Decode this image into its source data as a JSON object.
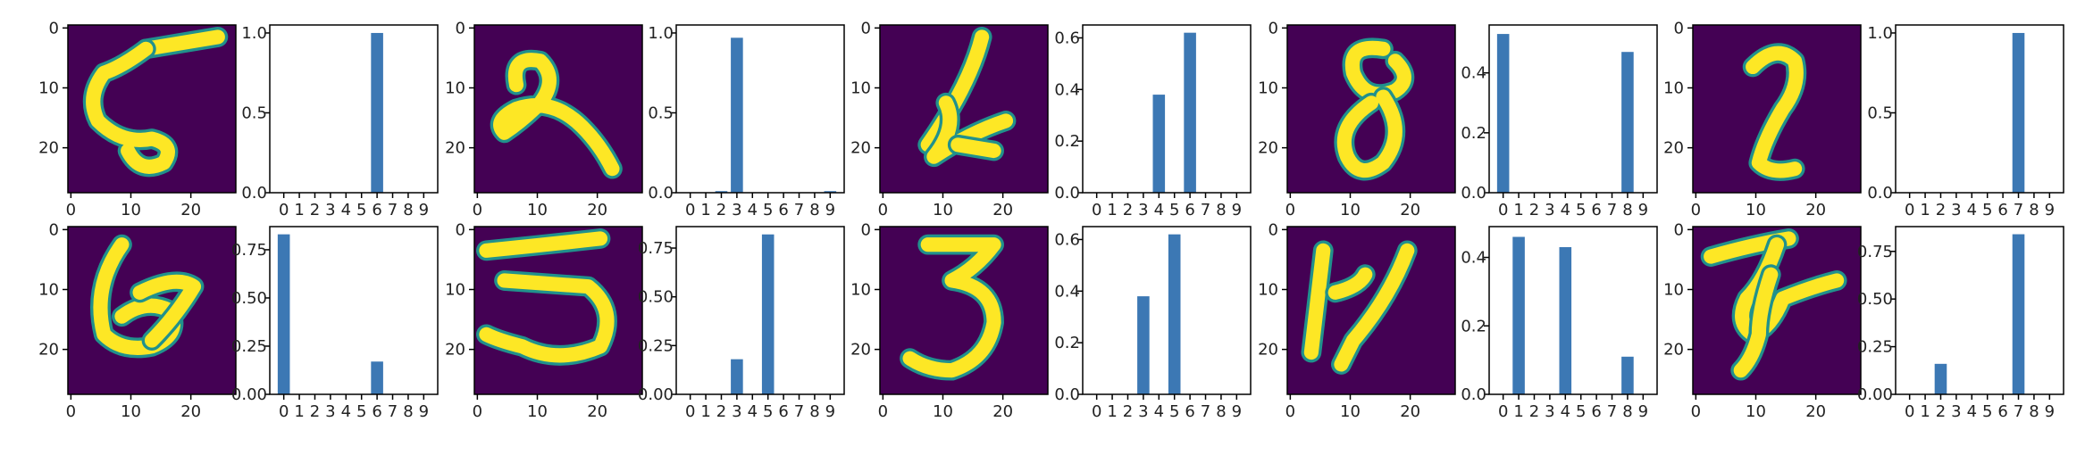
{
  "figure": {
    "description_free": true,
    "image_axis": {
      "x_ticks": [
        0,
        10,
        20
      ],
      "y_ticks": [
        0,
        10,
        20
      ],
      "range": [
        0,
        27
      ]
    },
    "bar_axis": {
      "categories": [
        "0",
        "1",
        "2",
        "3",
        "4",
        "5",
        "6",
        "7",
        "8",
        "9"
      ]
    },
    "colors": {
      "bar": "#3c78b4",
      "image_bg": "#440154",
      "image_fg": "#fde725",
      "image_mid": "#21918c"
    }
  },
  "chart_data": [
    {
      "type": "bar",
      "row": 1,
      "col": 1,
      "digit_image": "5",
      "categories": [
        "0",
        "1",
        "2",
        "3",
        "4",
        "5",
        "6",
        "7",
        "8",
        "9"
      ],
      "values": [
        0,
        0,
        0,
        0,
        0,
        0,
        1.0,
        0,
        0,
        0
      ],
      "ylim": [
        0,
        1.05
      ],
      "yticks": [
        0.0,
        0.5,
        1.0
      ],
      "ytick_labels": [
        "0.0",
        "0.5",
        "1.0"
      ]
    },
    {
      "type": "bar",
      "row": 1,
      "col": 2,
      "digit_image": "2",
      "categories": [
        "0",
        "1",
        "2",
        "3",
        "4",
        "5",
        "6",
        "7",
        "8",
        "9"
      ],
      "values": [
        0,
        0,
        0.01,
        0.97,
        0,
        0,
        0,
        0,
        0,
        0.01
      ],
      "ylim": [
        0,
        1.05
      ],
      "yticks": [
        0.0,
        0.5,
        1.0
      ],
      "ytick_labels": [
        "0.0",
        "0.5",
        "1.0"
      ]
    },
    {
      "type": "bar",
      "row": 1,
      "col": 3,
      "digit_image": "4",
      "categories": [
        "0",
        "1",
        "2",
        "3",
        "4",
        "5",
        "6",
        "7",
        "8",
        "9"
      ],
      "values": [
        0,
        0,
        0,
        0,
        0.38,
        0,
        0.62,
        0,
        0,
        0
      ],
      "ylim": [
        0,
        0.65
      ],
      "yticks": [
        0.0,
        0.2,
        0.4,
        0.6
      ],
      "ytick_labels": [
        "0.0",
        "0.2",
        "0.4",
        "0.6"
      ]
    },
    {
      "type": "bar",
      "row": 1,
      "col": 4,
      "digit_image": "8",
      "categories": [
        "0",
        "1",
        "2",
        "3",
        "4",
        "5",
        "6",
        "7",
        "8",
        "9"
      ],
      "values": [
        0.53,
        0,
        0,
        0,
        0,
        0,
        0,
        0,
        0.47,
        0
      ],
      "ylim": [
        0,
        0.56
      ],
      "yticks": [
        0.0,
        0.2,
        0.4
      ],
      "ytick_labels": [
        "0.0",
        "0.2",
        "0.4"
      ]
    },
    {
      "type": "bar",
      "row": 1,
      "col": 5,
      "digit_image": "2",
      "categories": [
        "0",
        "1",
        "2",
        "3",
        "4",
        "5",
        "6",
        "7",
        "8",
        "9"
      ],
      "values": [
        0,
        0,
        0,
        0,
        0,
        0,
        0,
        1.0,
        0,
        0
      ],
      "ylim": [
        0,
        1.05
      ],
      "yticks": [
        0.0,
        0.5,
        1.0
      ],
      "ytick_labels": [
        "0.0",
        "0.5",
        "1.0"
      ]
    },
    {
      "type": "bar",
      "row": 2,
      "col": 1,
      "digit_image": "6",
      "categories": [
        "0",
        "1",
        "2",
        "3",
        "4",
        "5",
        "6",
        "7",
        "8",
        "9"
      ],
      "values": [
        0.83,
        0,
        0,
        0,
        0,
        0,
        0.17,
        0,
        0,
        0
      ],
      "ylim": [
        0,
        0.87
      ],
      "yticks": [
        0.0,
        0.25,
        0.5,
        0.75
      ],
      "ytick_labels": [
        "0.00",
        "0.25",
        "0.50",
        "0.75"
      ]
    },
    {
      "type": "bar",
      "row": 2,
      "col": 2,
      "digit_image": "5",
      "categories": [
        "0",
        "1",
        "2",
        "3",
        "4",
        "5",
        "6",
        "7",
        "8",
        "9"
      ],
      "values": [
        0,
        0,
        0,
        0.18,
        0,
        0.82,
        0,
        0,
        0,
        0
      ],
      "ylim": [
        0,
        0.86
      ],
      "yticks": [
        0.0,
        0.25,
        0.5,
        0.75
      ],
      "ytick_labels": [
        "0.00",
        "0.25",
        "0.50",
        "0.75"
      ]
    },
    {
      "type": "bar",
      "row": 2,
      "col": 3,
      "digit_image": "3",
      "categories": [
        "0",
        "1",
        "2",
        "3",
        "4",
        "5",
        "6",
        "7",
        "8",
        "9"
      ],
      "values": [
        0,
        0,
        0,
        0.38,
        0,
        0.62,
        0,
        0,
        0,
        0
      ],
      "ylim": [
        0,
        0.65
      ],
      "yticks": [
        0.0,
        0.2,
        0.4,
        0.6
      ],
      "ytick_labels": [
        "0.0",
        "0.2",
        "0.4",
        "0.6"
      ]
    },
    {
      "type": "bar",
      "row": 2,
      "col": 4,
      "digit_image": "4",
      "categories": [
        "0",
        "1",
        "2",
        "3",
        "4",
        "5",
        "6",
        "7",
        "8",
        "9"
      ],
      "values": [
        0,
        0.46,
        0,
        0,
        0.43,
        0,
        0,
        0,
        0.11,
        0
      ],
      "ylim": [
        0,
        0.49
      ],
      "yticks": [
        0.0,
        0.2,
        0.4
      ],
      "ytick_labels": [
        "0.0",
        "0.2",
        "0.4"
      ]
    },
    {
      "type": "bar",
      "row": 2,
      "col": 5,
      "digit_image": "7",
      "categories": [
        "0",
        "1",
        "2",
        "3",
        "4",
        "5",
        "6",
        "7",
        "8",
        "9"
      ],
      "values": [
        0,
        0,
        0.16,
        0,
        0,
        0,
        0,
        0.84,
        0,
        0
      ],
      "ylim": [
        0,
        0.88
      ],
      "yticks": [
        0.0,
        0.25,
        0.5,
        0.75
      ],
      "ytick_labels": [
        "0.00",
        "0.25",
        "0.50",
        "0.75"
      ]
    }
  ]
}
